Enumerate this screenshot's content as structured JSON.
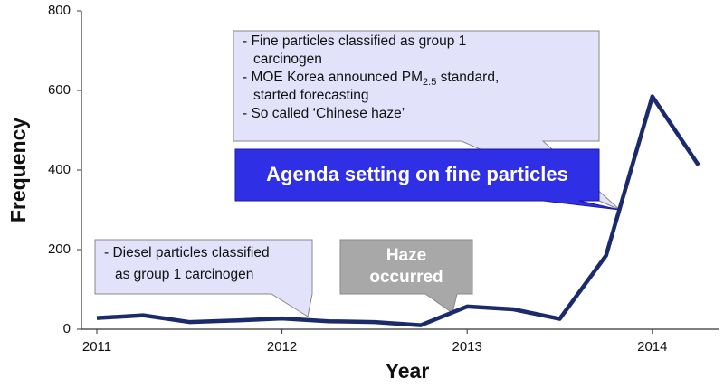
{
  "chart_data": {
    "type": "line",
    "x_label": "Year",
    "y_label": "Frequency",
    "categories": [
      "2011",
      null,
      null,
      null,
      "2012",
      null,
      null,
      null,
      "2013",
      null,
      null,
      null,
      "2014",
      null
    ],
    "values": [
      28,
      35,
      18,
      22,
      27,
      20,
      18,
      10,
      57,
      50,
      26,
      185,
      585,
      412
    ],
    "color": "#1b2a6b",
    "ylim": [
      0,
      800
    ],
    "yticks": [
      0,
      200,
      400,
      600,
      800
    ],
    "grid": false,
    "annotations": [
      {
        "lines": [
          "- Fine particles classified as group 1",
          "carcinogen",
          [
            "- MOE Korea announced PM",
            "2.5",
            " standard,"
          ],
          "started forecasting",
          "- So called ‘Chinese haze’"
        ]
      },
      {
        "lines": [
          "Agenda setting on fine particles"
        ]
      },
      {
        "lines": [
          "- Diesel particles classified",
          "as group 1 carcinogen"
        ]
      },
      {
        "lines": [
          "Haze",
          "occurred"
        ]
      }
    ]
  }
}
